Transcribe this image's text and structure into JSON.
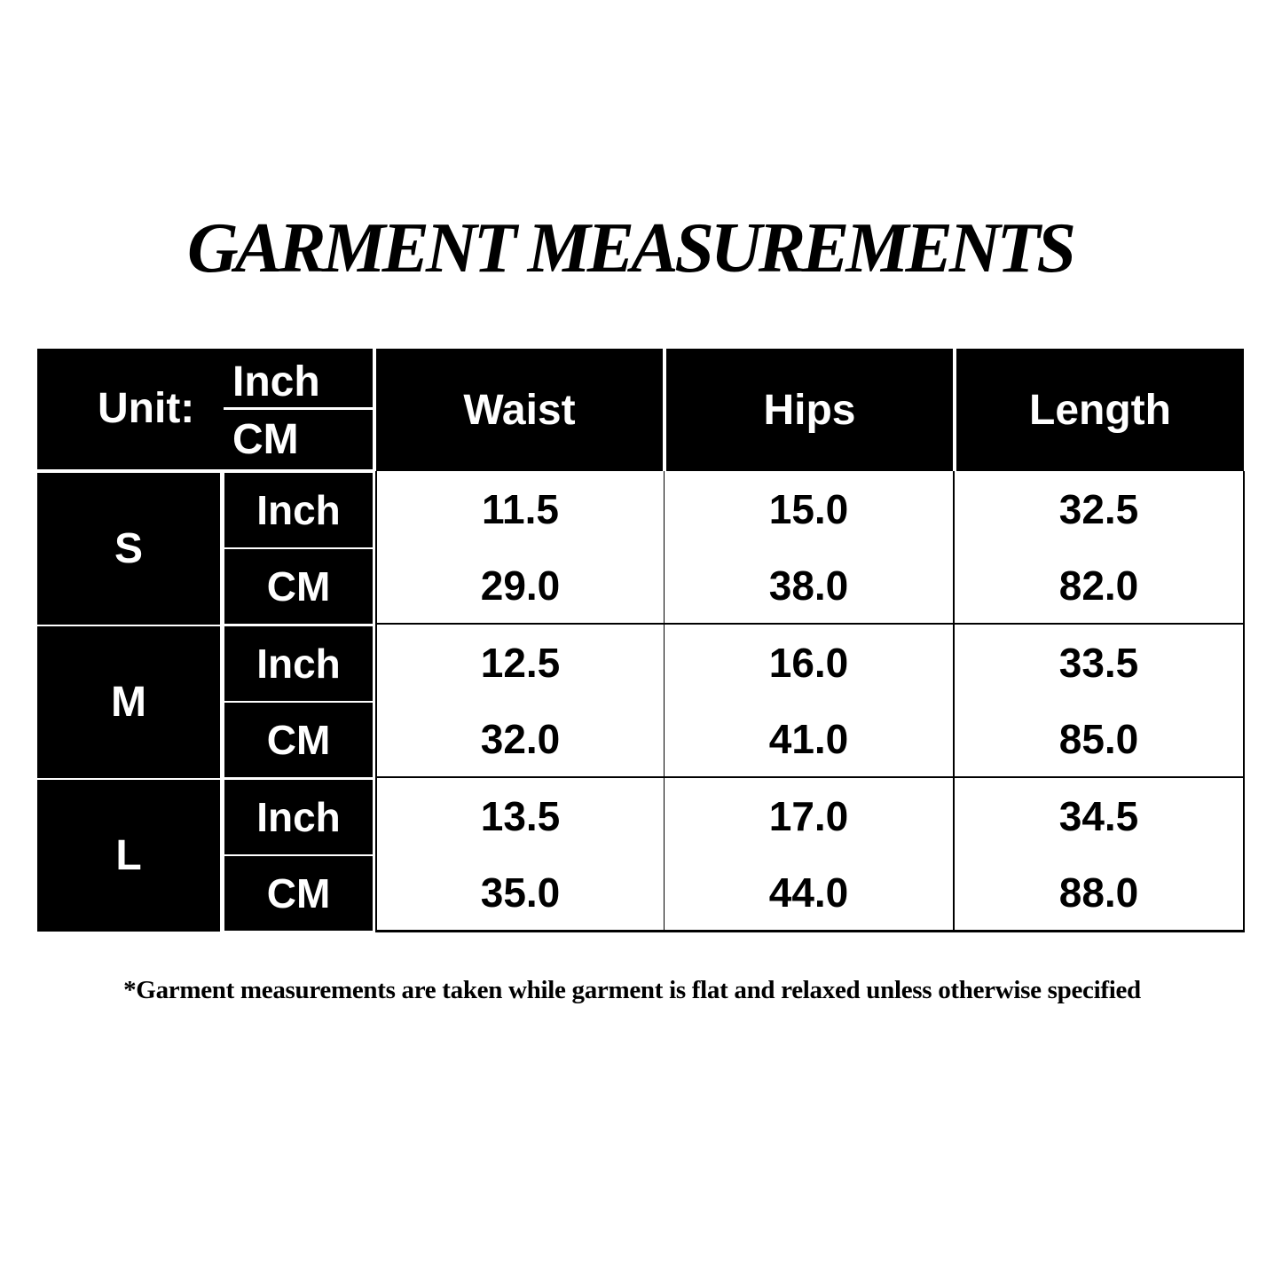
{
  "title": "GARMENT MEASUREMENTS",
  "table": {
    "unit_label": "Unit:",
    "unit_top": "Inch",
    "unit_bottom": "CM",
    "columns": [
      "Waist",
      "Hips",
      "Length"
    ],
    "sizes": [
      {
        "size": "S",
        "rows": [
          {
            "unit": "Inch",
            "values": [
              "11.5",
              "15.0",
              "32.5"
            ]
          },
          {
            "unit": "CM",
            "values": [
              "29.0",
              "38.0",
              "82.0"
            ]
          }
        ]
      },
      {
        "size": "M",
        "rows": [
          {
            "unit": "Inch",
            "values": [
              "12.5",
              "16.0",
              "33.5"
            ]
          },
          {
            "unit": "CM",
            "values": [
              "32.0",
              "41.0",
              "85.0"
            ]
          }
        ]
      },
      {
        "size": "L",
        "rows": [
          {
            "unit": "Inch",
            "values": [
              "13.5",
              "17.0",
              "34.5"
            ]
          },
          {
            "unit": "CM",
            "values": [
              "35.0",
              "44.0",
              "88.0"
            ]
          }
        ]
      }
    ]
  },
  "footnote": "*Garment measurements are taken while garment is flat and relaxed unless otherwise specified"
}
